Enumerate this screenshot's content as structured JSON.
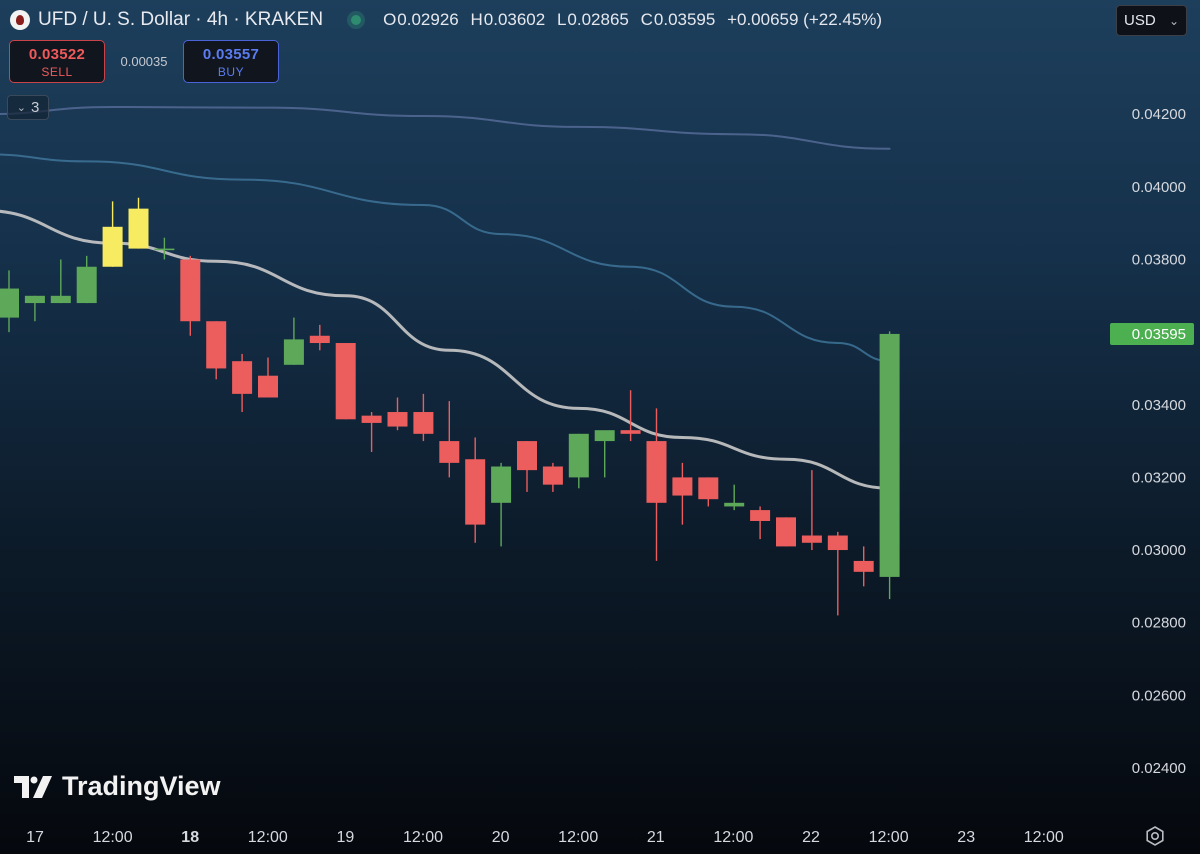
{
  "header": {
    "symbol_title": "UFD / U. S. Dollar · 4h · KRAKEN",
    "ohlc": {
      "o_label": "O",
      "o": "0.02926",
      "h_label": "H",
      "h": "0.03602",
      "l_label": "L",
      "l": "0.02865",
      "c_label": "C",
      "c": "0.03595",
      "change": "+0.00659 (+22.45%)"
    }
  },
  "currency": {
    "selected": "USD"
  },
  "trade": {
    "sell_price": "0.03522",
    "sell_label": "SELL",
    "spread": "0.00035",
    "buy_price": "0.03557",
    "buy_label": "BUY"
  },
  "indicators": {
    "count": "3"
  },
  "branding": {
    "name": "TradingView"
  },
  "colors": {
    "up": "#5ea85a",
    "down": "#ec5d5d",
    "highlight": "#f7ec61",
    "ma_fast": "#c9c9c9",
    "ma_mid": "#3e7499",
    "ma_slow": "#556b96",
    "last_price_bg": "#4caf50"
  },
  "chart_data": {
    "type": "candlestick",
    "interval": "4h",
    "ylim": [
      0.0232,
      0.0433
    ],
    "y_ticks": [
      "0.04200",
      "0.04000",
      "0.03800",
      "0.03600",
      "0.03400",
      "0.03200",
      "0.03000",
      "0.02800",
      "0.02600",
      "0.02400"
    ],
    "x_ticks": [
      "17",
      "12:00",
      "18",
      "12:00",
      "19",
      "12:00",
      "20",
      "12:00",
      "21",
      "12:00",
      "22",
      "12:00",
      "23",
      "12:00"
    ],
    "x_ticks_bold": [
      "18"
    ],
    "last_price": "0.03595",
    "candles": [
      {
        "o": 0.0364,
        "h": 0.0377,
        "l": 0.036,
        "c": 0.0372
      },
      {
        "o": 0.0368,
        "h": 0.037,
        "l": 0.0363,
        "c": 0.037
      },
      {
        "o": 0.0368,
        "h": 0.038,
        "l": 0.0368,
        "c": 0.037
      },
      {
        "o": 0.0368,
        "h": 0.0381,
        "l": 0.0368,
        "c": 0.0378
      },
      {
        "o": 0.0378,
        "h": 0.0396,
        "l": 0.0378,
        "c": 0.0389,
        "hl": true
      },
      {
        "o": 0.0383,
        "h": 0.0397,
        "l": 0.0383,
        "c": 0.0394,
        "hl": true
      },
      {
        "o": 0.0383,
        "h": 0.0386,
        "l": 0.038,
        "c": 0.0383
      },
      {
        "o": 0.038,
        "h": 0.0381,
        "l": 0.0359,
        "c": 0.0363
      },
      {
        "o": 0.0363,
        "h": 0.0363,
        "l": 0.0347,
        "c": 0.035
      },
      {
        "o": 0.0352,
        "h": 0.0354,
        "l": 0.0338,
        "c": 0.0343
      },
      {
        "o": 0.0348,
        "h": 0.0353,
        "l": 0.0342,
        "c": 0.0342
      },
      {
        "o": 0.0351,
        "h": 0.0364,
        "l": 0.0351,
        "c": 0.0358
      },
      {
        "o": 0.0359,
        "h": 0.0362,
        "l": 0.0355,
        "c": 0.0357
      },
      {
        "o": 0.0357,
        "h": 0.0357,
        "l": 0.0336,
        "c": 0.0336
      },
      {
        "o": 0.0337,
        "h": 0.0338,
        "l": 0.0327,
        "c": 0.0335
      },
      {
        "o": 0.0338,
        "h": 0.0342,
        "l": 0.0333,
        "c": 0.0334
      },
      {
        "o": 0.0338,
        "h": 0.0343,
        "l": 0.033,
        "c": 0.0332
      },
      {
        "o": 0.033,
        "h": 0.0341,
        "l": 0.032,
        "c": 0.0324
      },
      {
        "o": 0.0325,
        "h": 0.0331,
        "l": 0.0302,
        "c": 0.0307
      },
      {
        "o": 0.0313,
        "h": 0.0324,
        "l": 0.0301,
        "c": 0.0323
      },
      {
        "o": 0.033,
        "h": 0.033,
        "l": 0.0316,
        "c": 0.0322
      },
      {
        "o": 0.0323,
        "h": 0.0324,
        "l": 0.0316,
        "c": 0.0318
      },
      {
        "o": 0.032,
        "h": 0.0332,
        "l": 0.0317,
        "c": 0.0332
      },
      {
        "o": 0.033,
        "h": 0.0332,
        "l": 0.032,
        "c": 0.0333
      },
      {
        "o": 0.0333,
        "h": 0.0344,
        "l": 0.033,
        "c": 0.0332
      },
      {
        "o": 0.033,
        "h": 0.0339,
        "l": 0.0297,
        "c": 0.0313
      },
      {
        "o": 0.032,
        "h": 0.0324,
        "l": 0.0307,
        "c": 0.0315
      },
      {
        "o": 0.032,
        "h": 0.032,
        "l": 0.0312,
        "c": 0.0314
      },
      {
        "o": 0.0312,
        "h": 0.0318,
        "l": 0.0311,
        "c": 0.0313
      },
      {
        "o": 0.0311,
        "h": 0.0312,
        "l": 0.0303,
        "c": 0.0308
      },
      {
        "o": 0.0309,
        "h": 0.0309,
        "l": 0.0301,
        "c": 0.0301
      },
      {
        "o": 0.0304,
        "h": 0.0322,
        "l": 0.03,
        "c": 0.0302
      },
      {
        "o": 0.0304,
        "h": 0.0305,
        "l": 0.0282,
        "c": 0.03
      },
      {
        "o": 0.0297,
        "h": 0.0301,
        "l": 0.029,
        "c": 0.0294
      },
      {
        "o": 0.02926,
        "h": 0.03602,
        "l": 0.02865,
        "c": 0.03595
      }
    ],
    "moving_averages": [
      {
        "color_key": "ma_fast",
        "points": [
          [
            -1,
            0.03935
          ],
          [
            4,
            0.03845
          ],
          [
            8,
            0.03795
          ],
          [
            13,
            0.037
          ],
          [
            17,
            0.0355
          ],
          [
            22,
            0.0339
          ],
          [
            26,
            0.0331
          ],
          [
            30,
            0.0325
          ],
          [
            34,
            0.0317
          ]
        ]
      },
      {
        "color_key": "ma_mid",
        "points": [
          [
            -1,
            0.0409
          ],
          [
            3,
            0.0407
          ],
          [
            9,
            0.0402
          ],
          [
            16,
            0.0395
          ],
          [
            19,
            0.0387
          ],
          [
            24,
            0.0378
          ],
          [
            28,
            0.0367
          ],
          [
            32,
            0.0357
          ],
          [
            34,
            0.0352
          ]
        ]
      },
      {
        "color_key": "ma_slow",
        "points": [
          [
            -1,
            0.042
          ],
          [
            4,
            0.0422
          ],
          [
            10,
            0.04218
          ],
          [
            16,
            0.04195
          ],
          [
            22,
            0.04165
          ],
          [
            28,
            0.04145
          ],
          [
            34,
            0.04105
          ]
        ]
      }
    ]
  }
}
